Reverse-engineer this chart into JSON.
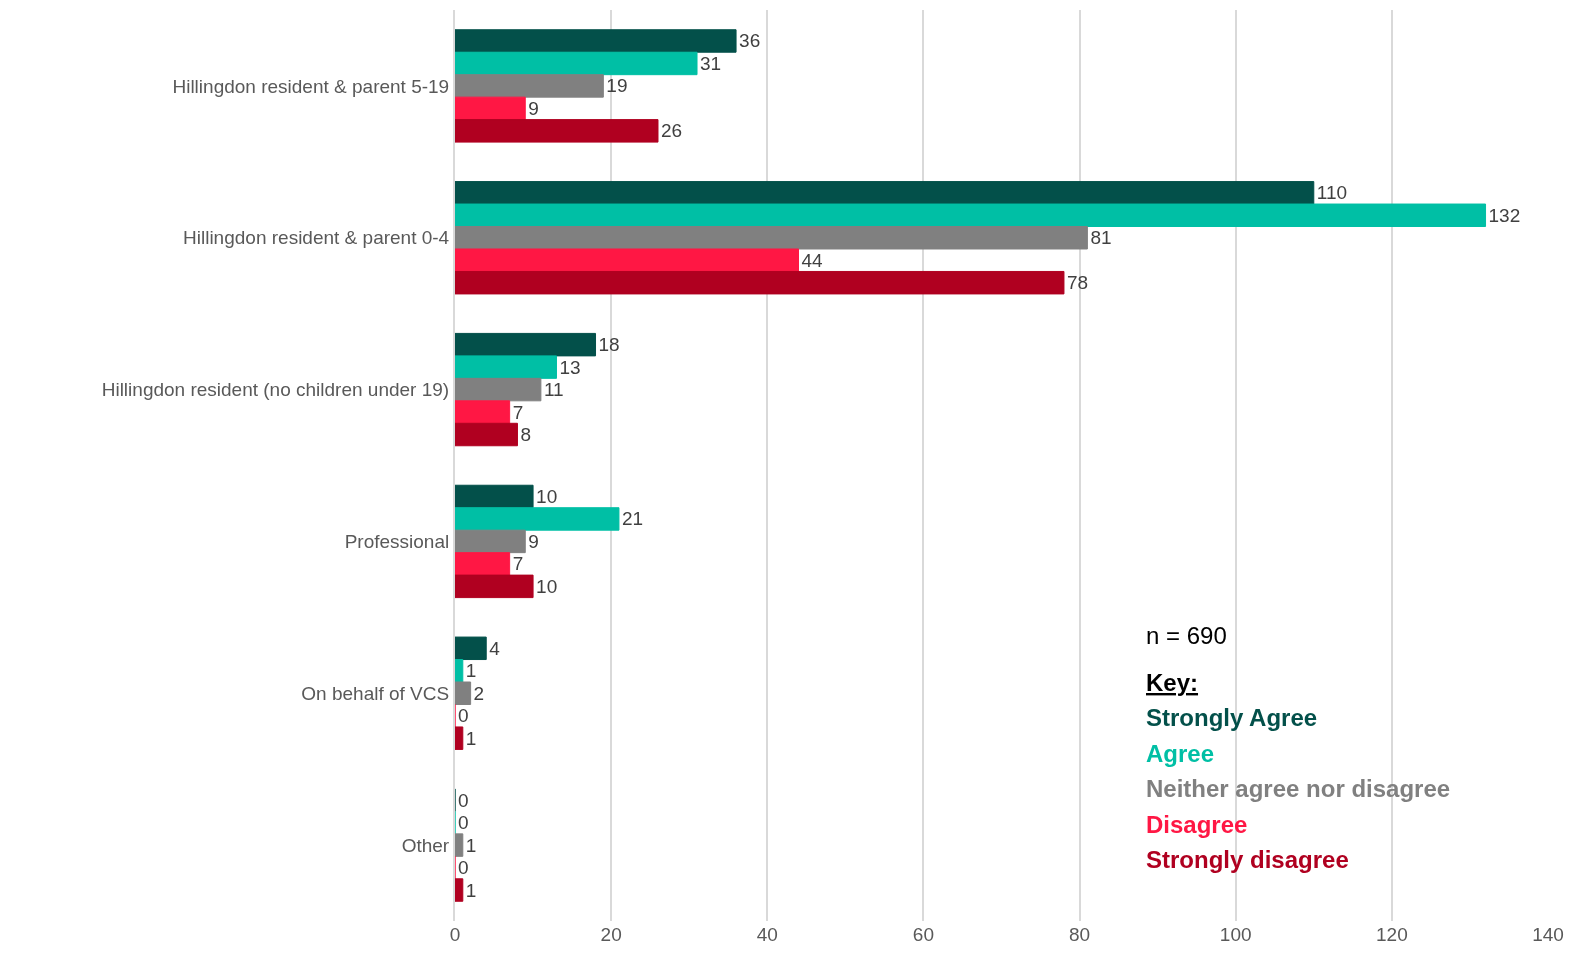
{
  "chart_data": {
    "type": "bar",
    "orientation": "horizontal",
    "categories": [
      "Hillingdon resident & parent 5-19",
      "Hillingdon resident & parent 0-4",
      "Hillingdon resident (no children under 19)",
      "Professional",
      "On behalf of VCS",
      "Other"
    ],
    "series": [
      {
        "name": "Strongly Agree",
        "color": "#03504a",
        "values": [
          36,
          110,
          18,
          10,
          4,
          0
        ]
      },
      {
        "name": "Agree",
        "color": "#00bfa5",
        "values": [
          31,
          132,
          13,
          21,
          1,
          0
        ]
      },
      {
        "name": "Neither agree nor disagree",
        "color": "#808080",
        "values": [
          19,
          81,
          11,
          9,
          2,
          1
        ]
      },
      {
        "name": "Disagree",
        "color": "#ff1744",
        "values": [
          9,
          44,
          7,
          7,
          0,
          0
        ]
      },
      {
        "name": "Strongly disagree",
        "color": "#b00020",
        "values": [
          26,
          78,
          8,
          10,
          1,
          1
        ]
      }
    ],
    "xlim": [
      0,
      140
    ],
    "xticks": [
      0,
      20,
      40,
      60,
      80,
      100,
      120,
      140
    ],
    "grid": "x",
    "data_labels": true,
    "legend": "bottom right",
    "legend_title": "Key:",
    "annotations": [
      "n = 690"
    ]
  }
}
